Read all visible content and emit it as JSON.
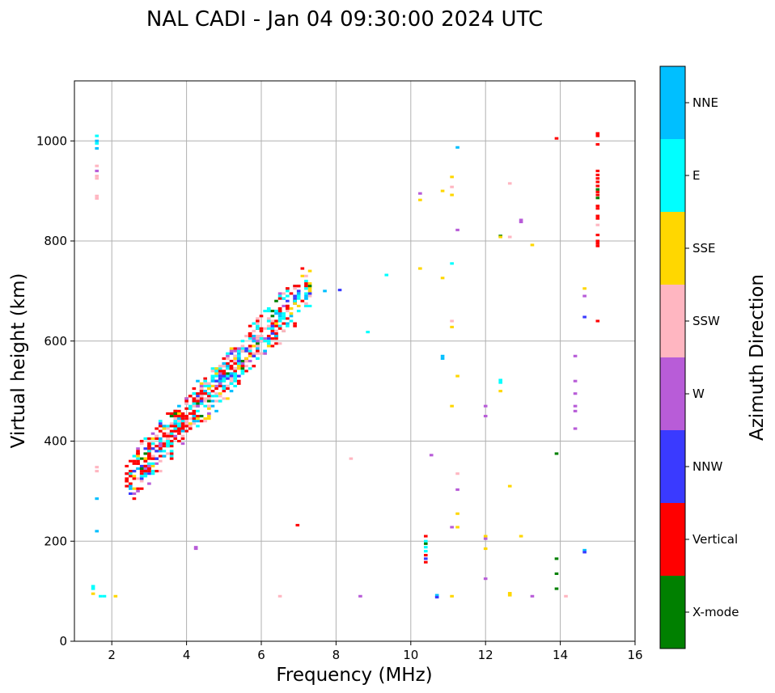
{
  "chart_data": {
    "type": "scatter",
    "title": "NAL CADI - Jan 04 09:30:00 2024 UTC",
    "xlabel": "Frequency (MHz)",
    "ylabel": "Virtual height (km)",
    "xlim": [
      1,
      16
    ],
    "ylim": [
      0,
      1120
    ],
    "x_ticks": [
      2,
      4,
      6,
      8,
      10,
      12,
      14,
      16
    ],
    "y_ticks": [
      0,
      200,
      400,
      600,
      800,
      1000
    ],
    "grid": true,
    "colorbar": {
      "label": "Azimuth Direction",
      "categories": [
        {
          "name": "X-mode",
          "color": "#008000"
        },
        {
          "name": "Vertical",
          "color": "#ff0000"
        },
        {
          "name": "NNW",
          "color": "#3a3aff"
        },
        {
          "name": "W",
          "color": "#b85cd8"
        },
        {
          "name": "SSW",
          "color": "#ffb6c1"
        },
        {
          "name": "SSE",
          "color": "#ffd700"
        },
        {
          "name": "E",
          "color": "#00ffff"
        },
        {
          "name": "NNE",
          "color": "#00bfff"
        }
      ]
    },
    "sparse_points": [
      {
        "x": 1.6,
        "y": 1010,
        "d": 6
      },
      {
        "x": 1.6,
        "y": 1000,
        "d": 7
      },
      {
        "x": 1.6,
        "y": 995,
        "d": 6
      },
      {
        "x": 1.6,
        "y": 985,
        "d": 7
      },
      {
        "x": 1.6,
        "y": 950,
        "d": 4
      },
      {
        "x": 1.6,
        "y": 940,
        "d": 3
      },
      {
        "x": 1.6,
        "y": 930,
        "d": 4
      },
      {
        "x": 1.6,
        "y": 925,
        "d": 4
      },
      {
        "x": 1.6,
        "y": 890,
        "d": 4
      },
      {
        "x": 1.6,
        "y": 885,
        "d": 4
      },
      {
        "x": 1.6,
        "y": 348,
        "d": 4
      },
      {
        "x": 1.6,
        "y": 340,
        "d": 4
      },
      {
        "x": 1.6,
        "y": 285,
        "d": 7
      },
      {
        "x": 1.6,
        "y": 220,
        "d": 7
      },
      {
        "x": 1.5,
        "y": 110,
        "d": 6
      },
      {
        "x": 1.5,
        "y": 105,
        "d": 6
      },
      {
        "x": 1.5,
        "y": 95,
        "d": 5
      },
      {
        "x": 1.7,
        "y": 90,
        "d": 6
      },
      {
        "x": 1.8,
        "y": 90,
        "d": 6
      },
      {
        "x": 2.1,
        "y": 90,
        "d": 5
      },
      {
        "x": 4.25,
        "y": 188,
        "d": 3
      },
      {
        "x": 4.25,
        "y": 185,
        "d": 3
      },
      {
        "x": 6.5,
        "y": 90,
        "d": 4
      },
      {
        "x": 6.97,
        "y": 232,
        "d": 1
      },
      {
        "x": 8.4,
        "y": 365,
        "d": 4
      },
      {
        "x": 8.65,
        "y": 90,
        "d": 3
      },
      {
        "x": 7.7,
        "y": 700,
        "d": 7
      },
      {
        "x": 8.1,
        "y": 702,
        "d": 2
      },
      {
        "x": 8.85,
        "y": 618,
        "d": 6
      },
      {
        "x": 9.35,
        "y": 732,
        "d": 6
      },
      {
        "x": 10.25,
        "y": 895,
        "d": 3
      },
      {
        "x": 10.25,
        "y": 882,
        "d": 5
      },
      {
        "x": 10.25,
        "y": 745,
        "d": 5
      },
      {
        "x": 10.4,
        "y": 210,
        "d": 1
      },
      {
        "x": 10.4,
        "y": 200,
        "d": 6
      },
      {
        "x": 10.4,
        "y": 195,
        "d": 0
      },
      {
        "x": 10.4,
        "y": 188,
        "d": 6
      },
      {
        "x": 10.4,
        "y": 180,
        "d": 6
      },
      {
        "x": 10.4,
        "y": 172,
        "d": 1
      },
      {
        "x": 10.4,
        "y": 165,
        "d": 2
      },
      {
        "x": 10.4,
        "y": 158,
        "d": 1
      },
      {
        "x": 10.55,
        "y": 372,
        "d": 3
      },
      {
        "x": 10.7,
        "y": 92,
        "d": 7
      },
      {
        "x": 10.7,
        "y": 88,
        "d": 2
      },
      {
        "x": 10.85,
        "y": 900,
        "d": 5
      },
      {
        "x": 10.85,
        "y": 726,
        "d": 5
      },
      {
        "x": 10.85,
        "y": 570,
        "d": 7
      },
      {
        "x": 10.85,
        "y": 565,
        "d": 7
      },
      {
        "x": 11.1,
        "y": 928,
        "d": 5
      },
      {
        "x": 11.1,
        "y": 908,
        "d": 4
      },
      {
        "x": 11.1,
        "y": 892,
        "d": 5
      },
      {
        "x": 11.1,
        "y": 755,
        "d": 6
      },
      {
        "x": 11.1,
        "y": 640,
        "d": 4
      },
      {
        "x": 11.1,
        "y": 628,
        "d": 5
      },
      {
        "x": 11.1,
        "y": 470,
        "d": 5
      },
      {
        "x": 11.1,
        "y": 228,
        "d": 3
      },
      {
        "x": 11.1,
        "y": 90,
        "d": 5
      },
      {
        "x": 11.25,
        "y": 987,
        "d": 7
      },
      {
        "x": 11.25,
        "y": 822,
        "d": 3
      },
      {
        "x": 11.25,
        "y": 530,
        "d": 5
      },
      {
        "x": 11.25,
        "y": 335,
        "d": 4
      },
      {
        "x": 11.25,
        "y": 303,
        "d": 3
      },
      {
        "x": 11.25,
        "y": 255,
        "d": 5
      },
      {
        "x": 11.25,
        "y": 228,
        "d": 5
      },
      {
        "x": 12.0,
        "y": 470,
        "d": 3
      },
      {
        "x": 12.0,
        "y": 450,
        "d": 3
      },
      {
        "x": 12.0,
        "y": 210,
        "d": 5
      },
      {
        "x": 12.0,
        "y": 205,
        "d": 3
      },
      {
        "x": 12.0,
        "y": 185,
        "d": 5
      },
      {
        "x": 12.0,
        "y": 125,
        "d": 3
      },
      {
        "x": 12.4,
        "y": 810,
        "d": 0
      },
      {
        "x": 12.4,
        "y": 808,
        "d": 5
      },
      {
        "x": 12.4,
        "y": 522,
        "d": 6
      },
      {
        "x": 12.4,
        "y": 517,
        "d": 6
      },
      {
        "x": 12.4,
        "y": 500,
        "d": 5
      },
      {
        "x": 12.65,
        "y": 915,
        "d": 4
      },
      {
        "x": 12.65,
        "y": 808,
        "d": 4
      },
      {
        "x": 12.65,
        "y": 310,
        "d": 5
      },
      {
        "x": 12.65,
        "y": 96,
        "d": 5
      },
      {
        "x": 12.65,
        "y": 92,
        "d": 5
      },
      {
        "x": 12.95,
        "y": 842,
        "d": 3
      },
      {
        "x": 12.95,
        "y": 838,
        "d": 3
      },
      {
        "x": 12.95,
        "y": 210,
        "d": 5
      },
      {
        "x": 13.25,
        "y": 792,
        "d": 5
      },
      {
        "x": 13.25,
        "y": 90,
        "d": 3
      },
      {
        "x": 13.9,
        "y": 1005,
        "d": 1
      },
      {
        "x": 13.9,
        "y": 375,
        "d": 0
      },
      {
        "x": 13.9,
        "y": 165,
        "d": 0
      },
      {
        "x": 13.9,
        "y": 135,
        "d": 0
      },
      {
        "x": 13.9,
        "y": 105,
        "d": 0
      },
      {
        "x": 14.15,
        "y": 90,
        "d": 4
      },
      {
        "x": 14.4,
        "y": 570,
        "d": 3
      },
      {
        "x": 14.4,
        "y": 520,
        "d": 3
      },
      {
        "x": 14.4,
        "y": 495,
        "d": 3
      },
      {
        "x": 14.4,
        "y": 470,
        "d": 3
      },
      {
        "x": 14.4,
        "y": 460,
        "d": 3
      },
      {
        "x": 14.4,
        "y": 425,
        "d": 3
      },
      {
        "x": 14.65,
        "y": 705,
        "d": 5
      },
      {
        "x": 14.65,
        "y": 690,
        "d": 3
      },
      {
        "x": 14.65,
        "y": 648,
        "d": 2
      },
      {
        "x": 14.65,
        "y": 182,
        "d": 7
      },
      {
        "x": 14.65,
        "y": 178,
        "d": 2
      },
      {
        "x": 15.0,
        "y": 1015,
        "d": 1
      },
      {
        "x": 15.0,
        "y": 1010,
        "d": 1
      },
      {
        "x": 15.0,
        "y": 993,
        "d": 1
      },
      {
        "x": 15.0,
        "y": 940,
        "d": 1
      },
      {
        "x": 15.0,
        "y": 932,
        "d": 1
      },
      {
        "x": 15.0,
        "y": 925,
        "d": 1
      },
      {
        "x": 15.0,
        "y": 918,
        "d": 1
      },
      {
        "x": 15.0,
        "y": 910,
        "d": 1
      },
      {
        "x": 15.0,
        "y": 903,
        "d": 0
      },
      {
        "x": 15.0,
        "y": 898,
        "d": 1
      },
      {
        "x": 15.0,
        "y": 892,
        "d": 1
      },
      {
        "x": 15.0,
        "y": 886,
        "d": 0
      },
      {
        "x": 15.0,
        "y": 870,
        "d": 1
      },
      {
        "x": 15.0,
        "y": 865,
        "d": 1
      },
      {
        "x": 15.0,
        "y": 850,
        "d": 1
      },
      {
        "x": 15.0,
        "y": 845,
        "d": 1
      },
      {
        "x": 15.0,
        "y": 832,
        "d": 4
      },
      {
        "x": 15.0,
        "y": 812,
        "d": 1
      },
      {
        "x": 15.0,
        "y": 800,
        "d": 1
      },
      {
        "x": 15.0,
        "y": 795,
        "d": 1
      },
      {
        "x": 15.0,
        "y": 790,
        "d": 1
      },
      {
        "x": 15.0,
        "y": 640,
        "d": 1
      }
    ],
    "trace_cluster": {
      "description": "Dense ionogram echo trace from about 2.4 MHz / 320 km rising to about 7.2 MHz / 690 km",
      "x_range": [
        2.4,
        7.3
      ],
      "height_start": 320,
      "height_slope_per_mhz": 80,
      "height_spread": 55,
      "point_count": 950,
      "weights": [
        0.05,
        0.16,
        0.1,
        0.08,
        0.14,
        0.12,
        0.25,
        0.1
      ]
    }
  }
}
